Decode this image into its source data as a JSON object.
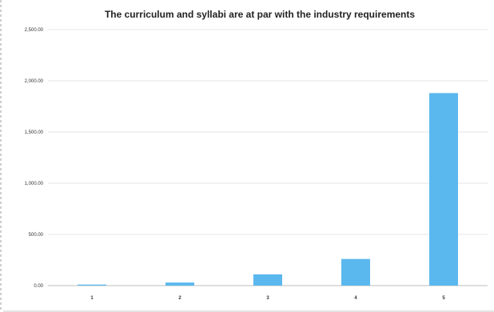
{
  "chart_data": {
    "type": "bar",
    "title": "The curriculum and syllabi are at par with the industry requirements",
    "xlabel": "",
    "ylabel": "",
    "categories": [
      "1",
      "2",
      "3",
      "4",
      "5"
    ],
    "values": [
      10,
      30,
      110,
      260,
      1880
    ],
    "ylim": [
      0,
      2500
    ],
    "yticks": [
      "0.00",
      "500.00",
      "1,000.00",
      "1,500.00",
      "2,000.00",
      "2,500.00"
    ],
    "grid": true,
    "legend": "none",
    "bar_color": "#5bb8ee"
  }
}
